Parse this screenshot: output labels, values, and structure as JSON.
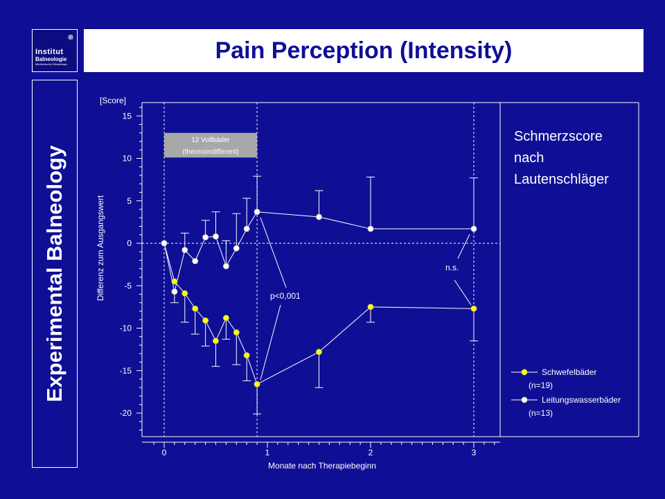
{
  "header": {
    "logo_line1": "Institut",
    "logo_line2": "Balneologie",
    "logo_line3": "Medizinische Klimatologie",
    "title": "Pain Perception (Intensity)"
  },
  "sidebar": {
    "vertical_label": "Experimental Balneology"
  },
  "chart_data": {
    "type": "line",
    "title": "",
    "xlabel": "Monate nach Therapiebeginn",
    "ylabel": "Differenz zum Ausgangswert",
    "y_unit_label": "[Score]",
    "xlim": [
      -0.2,
      3.25
    ],
    "ylim": [
      -22.5,
      16.5
    ],
    "x_ticks": [
      0,
      1,
      2,
      3
    ],
    "y_ticks": [
      15,
      10,
      5,
      0,
      -5,
      -10,
      -15,
      -20
    ],
    "grid": false,
    "legend_position": "bottom-right",
    "colors": {
      "background": "#0f0f96",
      "axis": "#ffffff",
      "schwefel": "#ffff00",
      "leitung": "#ffffff"
    },
    "series": [
      {
        "name": "Schwefelbäder",
        "legend_n": "(n=19)",
        "color": "#ffff00",
        "x": [
          0,
          0.1,
          0.2,
          0.3,
          0.4,
          0.5,
          0.6,
          0.7,
          0.8,
          0.9,
          1.5,
          2.0,
          3.0
        ],
        "y": [
          0,
          -4.5,
          -5.9,
          -7.7,
          -9.1,
          -11.5,
          -8.8,
          -10.5,
          -13.2,
          -16.6,
          -12.8,
          -7.5,
          -7.7
        ],
        "err": [
          0,
          0,
          3.4,
          3.0,
          3.0,
          3.0,
          2.5,
          3.8,
          3.0,
          3.5,
          4.2,
          1.8,
          3.8
        ],
        "err_dir": [
          "none",
          "none",
          "down",
          "down",
          "down",
          "down",
          "down",
          "down",
          "down",
          "down",
          "down",
          "down",
          "down"
        ]
      },
      {
        "name": "Leitungswasserbäder",
        "legend_n": "(n=13)",
        "color": "#ffffff",
        "x": [
          0,
          0.1,
          0.2,
          0.3,
          0.4,
          0.5,
          0.6,
          0.7,
          0.8,
          0.9,
          1.5,
          2.0,
          3.0
        ],
        "y": [
          0,
          -5.7,
          -0.8,
          -2.1,
          0.7,
          0.8,
          -2.7,
          -0.6,
          1.7,
          3.7,
          3.1,
          1.7,
          1.7
        ],
        "err": [
          0,
          1.3,
          2.0,
          0,
          2.0,
          2.9,
          3.0,
          4.1,
          3.6,
          4.2,
          3.1,
          6.1,
          6.0
        ],
        "err_dir": [
          "none",
          "down",
          "up",
          "none",
          "up",
          "up",
          "up",
          "up",
          "up",
          "up",
          "up",
          "up",
          "up"
        ]
      }
    ],
    "vlines": [
      0,
      0.9,
      3.0
    ],
    "hline": 0,
    "treatment_box": {
      "line1": "12 Vollbäder",
      "line2": "(thermoindifferent)",
      "x_from": 0,
      "x_to": 0.9,
      "y_top": 13,
      "y_bottom": 10.1
    },
    "annotations": {
      "p_value": "p<0,001",
      "ns": "n.s."
    },
    "legend_title": [
      "Schmerzscore",
      "nach",
      "Lautenschläger"
    ]
  }
}
